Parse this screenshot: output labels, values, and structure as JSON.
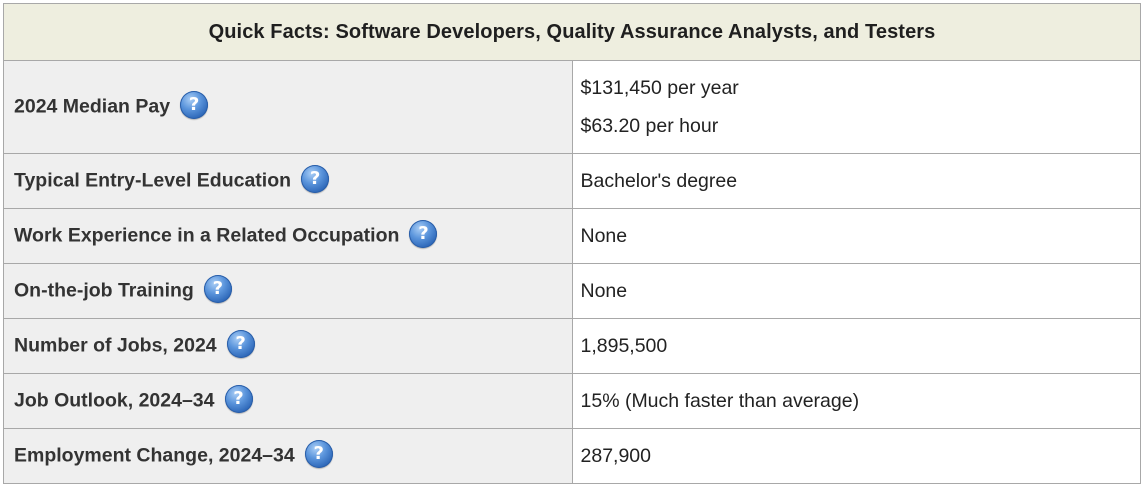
{
  "table": {
    "caption": "Quick Facts: Software Developers, Quality Assurance Analysts, and Testers",
    "help_icon_glyph": "?",
    "rows": [
      {
        "label": "2024 Median Pay",
        "icon": "help-question-icon",
        "values": [
          "$131,450 per year",
          "$63.20 per hour"
        ]
      },
      {
        "label": "Typical Entry-Level Education",
        "icon": "help-question-icon",
        "values": [
          "Bachelor's degree"
        ]
      },
      {
        "label": "Work Experience in a Related Occupation",
        "icon": "help-question-icon",
        "values": [
          "None"
        ]
      },
      {
        "label": "On-the-job Training",
        "icon": "help-question-icon",
        "values": [
          "None"
        ]
      },
      {
        "label": "Number of Jobs, 2024",
        "icon": "help-question-icon",
        "values": [
          "1,895,500"
        ]
      },
      {
        "label": "Job Outlook, 2024–34",
        "icon": "help-question-icon",
        "values": [
          "15% (Much faster than average)"
        ]
      },
      {
        "label": "Employment Change, 2024–34",
        "icon": "help-question-icon",
        "values": [
          "287,900"
        ]
      }
    ]
  },
  "colors": {
    "caption_background": "#eeeedf",
    "label_background": "#efefef",
    "border": "#a8a8a8",
    "help_icon_blue": "#3a75c4"
  }
}
